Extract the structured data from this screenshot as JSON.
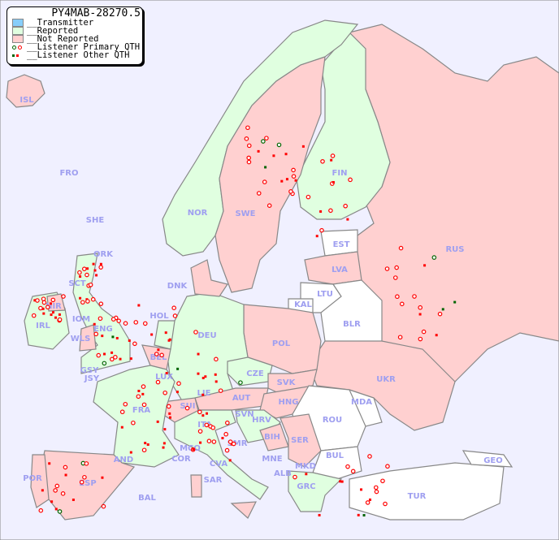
{
  "legend": {
    "title": "PY4MAB-28270.5",
    "items": [
      {
        "label": "__Transmitter",
        "color": "#87cefa"
      },
      {
        "label": "__Reported",
        "color": "#e0ffe0"
      },
      {
        "label": "__Not Reported",
        "color": "#ffd0d0"
      },
      {
        "label": "__Listener Primary QTH",
        "colors": [
          "#006400",
          "#ff0000"
        ]
      },
      {
        "label": "__Listener Other QTH",
        "colors": [
          "#006400",
          "#ff0000"
        ]
      }
    ]
  },
  "colors": {
    "sea": "#f0f0ff",
    "label": "#9f9ff0",
    "border": "#888888"
  },
  "countries": [
    {
      "code": "ISL",
      "status": "not_reported"
    },
    {
      "code": "FRO",
      "status": "none"
    },
    {
      "code": "SHE",
      "status": "none"
    },
    {
      "code": "ORK",
      "status": "none"
    },
    {
      "code": "NOR",
      "status": "reported"
    },
    {
      "code": "SWE",
      "status": "not_reported"
    },
    {
      "code": "FIN",
      "status": "reported"
    },
    {
      "code": "EST",
      "status": "none"
    },
    {
      "code": "RUS",
      "status": "not_reported"
    },
    {
      "code": "LVA",
      "status": "not_reported"
    },
    {
      "code": "LTU",
      "status": "none"
    },
    {
      "code": "KAL",
      "status": "none"
    },
    {
      "code": "BLR",
      "status": "none"
    },
    {
      "code": "DNK",
      "status": "not_reported"
    },
    {
      "code": "SCT",
      "status": "reported"
    },
    {
      "code": "NIR",
      "status": "not_reported"
    },
    {
      "code": "IRL",
      "status": "reported"
    },
    {
      "code": "IOM",
      "status": "reported"
    },
    {
      "code": "WLS",
      "status": "not_reported"
    },
    {
      "code": "ENG",
      "status": "reported"
    },
    {
      "code": "HOL",
      "status": "reported"
    },
    {
      "code": "DEU",
      "status": "reported"
    },
    {
      "code": "POL",
      "status": "not_reported"
    },
    {
      "code": "GSY",
      "status": "reported"
    },
    {
      "code": "JSY",
      "status": "reported"
    },
    {
      "code": "BEL",
      "status": "not_reported"
    },
    {
      "code": "LUX",
      "status": "reported"
    },
    {
      "code": "CZE",
      "status": "reported"
    },
    {
      "code": "SVK",
      "status": "not_reported"
    },
    {
      "code": "UKR",
      "status": "not_reported"
    },
    {
      "code": "FRA",
      "status": "reported"
    },
    {
      "code": "SUI",
      "status": "not_reported"
    },
    {
      "code": "LIE",
      "status": "reported"
    },
    {
      "code": "AUT",
      "status": "not_reported"
    },
    {
      "code": "HNG",
      "status": "not_reported"
    },
    {
      "code": "MDA",
      "status": "none"
    },
    {
      "code": "SVN",
      "status": "reported"
    },
    {
      "code": "HRV",
      "status": "reported"
    },
    {
      "code": "ROU",
      "status": "none"
    },
    {
      "code": "ITA",
      "status": "reported"
    },
    {
      "code": "SMR",
      "status": "reported"
    },
    {
      "code": "BIH",
      "status": "not_reported"
    },
    {
      "code": "SER",
      "status": "not_reported"
    },
    {
      "code": "MCO",
      "status": "reported"
    },
    {
      "code": "COR",
      "status": "reported"
    },
    {
      "code": "CVA",
      "status": "reported"
    },
    {
      "code": "MNE",
      "status": "reported"
    },
    {
      "code": "BUL",
      "status": "none"
    },
    {
      "code": "GEO",
      "status": "none"
    },
    {
      "code": "AND",
      "status": "reported"
    },
    {
      "code": "ALB",
      "status": "reported"
    },
    {
      "code": "MKD",
      "status": "reported"
    },
    {
      "code": "POR",
      "status": "not_reported"
    },
    {
      "code": "ESP",
      "status": "not_reported"
    },
    {
      "code": "SAR",
      "status": "not_reported"
    },
    {
      "code": "GRC",
      "status": "reported"
    },
    {
      "code": "TUR",
      "status": "none"
    },
    {
      "code": "BAL",
      "status": "not_reported"
    }
  ]
}
